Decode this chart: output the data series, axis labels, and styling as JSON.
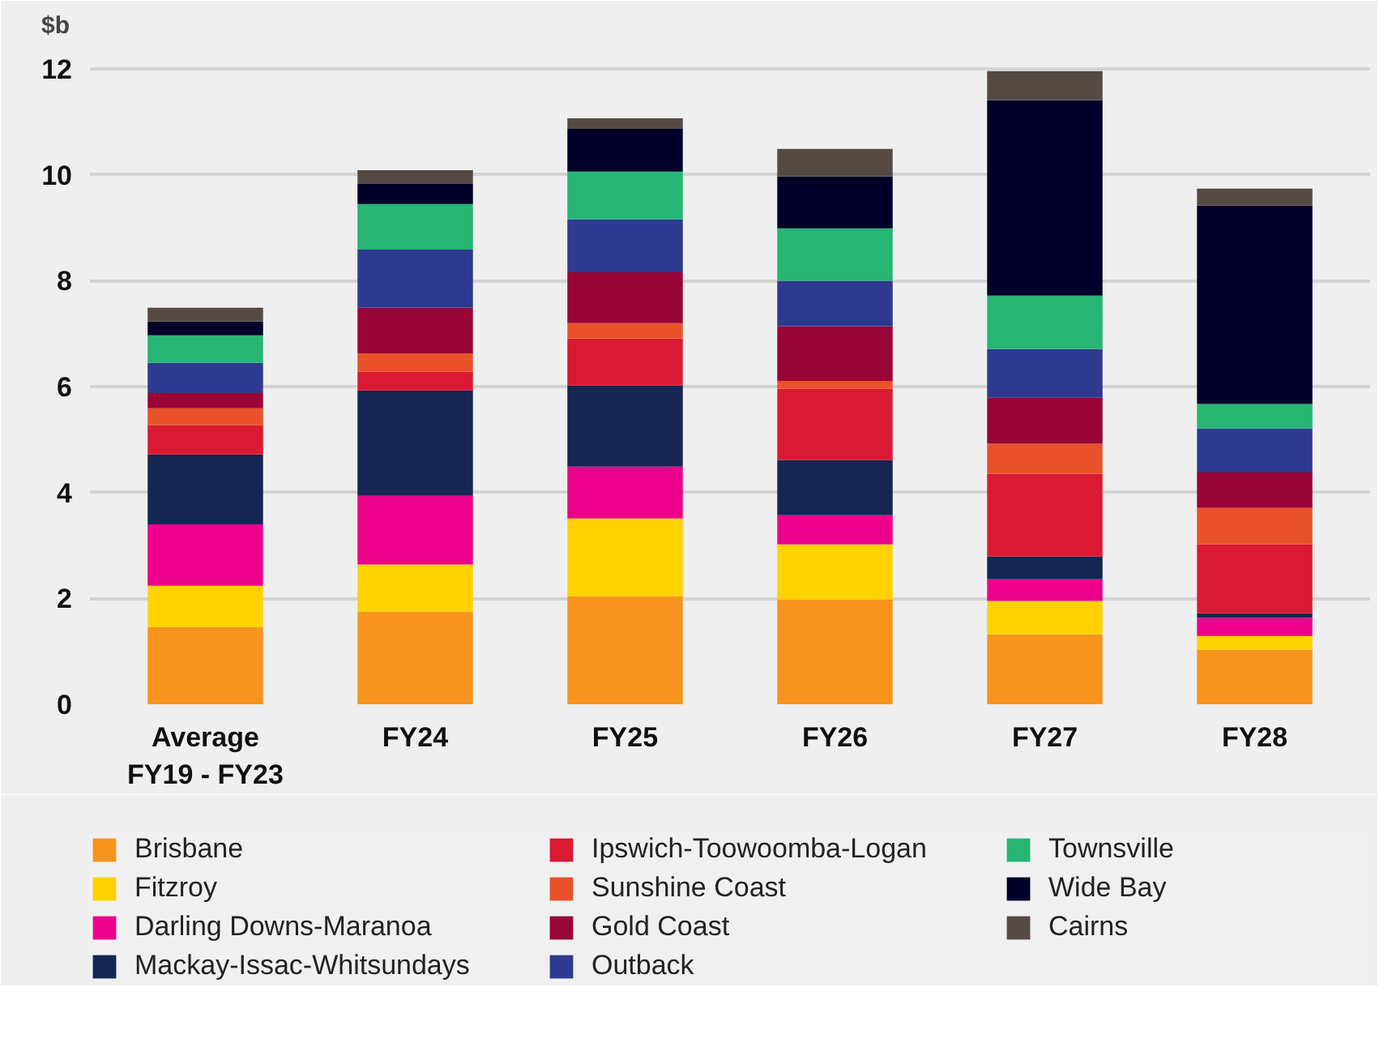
{
  "chart_data": {
    "type": "bar",
    "stacked": true,
    "ylabel": "$b",
    "categories": [
      "Average\nFY19 - FY23",
      "FY24",
      "FY25",
      "FY26",
      "FY27",
      "FY28"
    ],
    "ylim": [
      0,
      12.4
    ],
    "yticks": [
      0,
      2,
      4,
      6,
      8,
      10,
      12
    ],
    "grid": "y",
    "legend": "bottom",
    "series": [
      {
        "name": "Brisbane",
        "color": "#f7941d",
        "values": [
          1.46,
          1.75,
          2.04,
          1.98,
          1.32,
          1.03
        ]
      },
      {
        "name": "Fitzroy",
        "color": "#ffd200",
        "values": [
          0.78,
          0.89,
          1.47,
          1.04,
          0.63,
          0.26
        ]
      },
      {
        "name": "Darling Downs-Maranoa",
        "color": "#ec008c",
        "values": [
          1.16,
          1.3,
          0.98,
          0.55,
          0.41,
          0.34
        ]
      },
      {
        "name": "Mackay-Issac-Whitsundays",
        "color": "#152653",
        "values": [
          1.32,
          1.99,
          1.53,
          1.04,
          0.43,
          0.09
        ]
      },
      {
        "name": "Ipswich-Toowoomba-Logan",
        "color": "#da1a32",
        "values": [
          0.55,
          0.35,
          0.89,
          1.35,
          1.56,
          1.3
        ]
      },
      {
        "name": "Sunshine Coast",
        "color": "#e9522a",
        "values": [
          0.32,
          0.35,
          0.29,
          0.15,
          0.57,
          0.69
        ]
      },
      {
        "name": "Gold Coast",
        "color": "#990537",
        "values": [
          0.29,
          0.86,
          0.96,
          1.03,
          0.87,
          0.67
        ]
      },
      {
        "name": "Outback",
        "color": "#2e3990",
        "values": [
          0.57,
          1.1,
          1.0,
          0.86,
          0.92,
          0.83
        ]
      },
      {
        "name": "Townsville",
        "color": "#26b573",
        "values": [
          0.52,
          0.86,
          0.9,
          0.99,
          1.01,
          0.46
        ]
      },
      {
        "name": "Wide Bay",
        "color": "#00002b",
        "values": [
          0.26,
          0.38,
          0.81,
          0.98,
          3.69,
          3.75
        ]
      },
      {
        "name": "Cairns",
        "color": "#564a45",
        "values": [
          0.26,
          0.26,
          0.2,
          0.52,
          0.55,
          0.32
        ]
      }
    ]
  }
}
